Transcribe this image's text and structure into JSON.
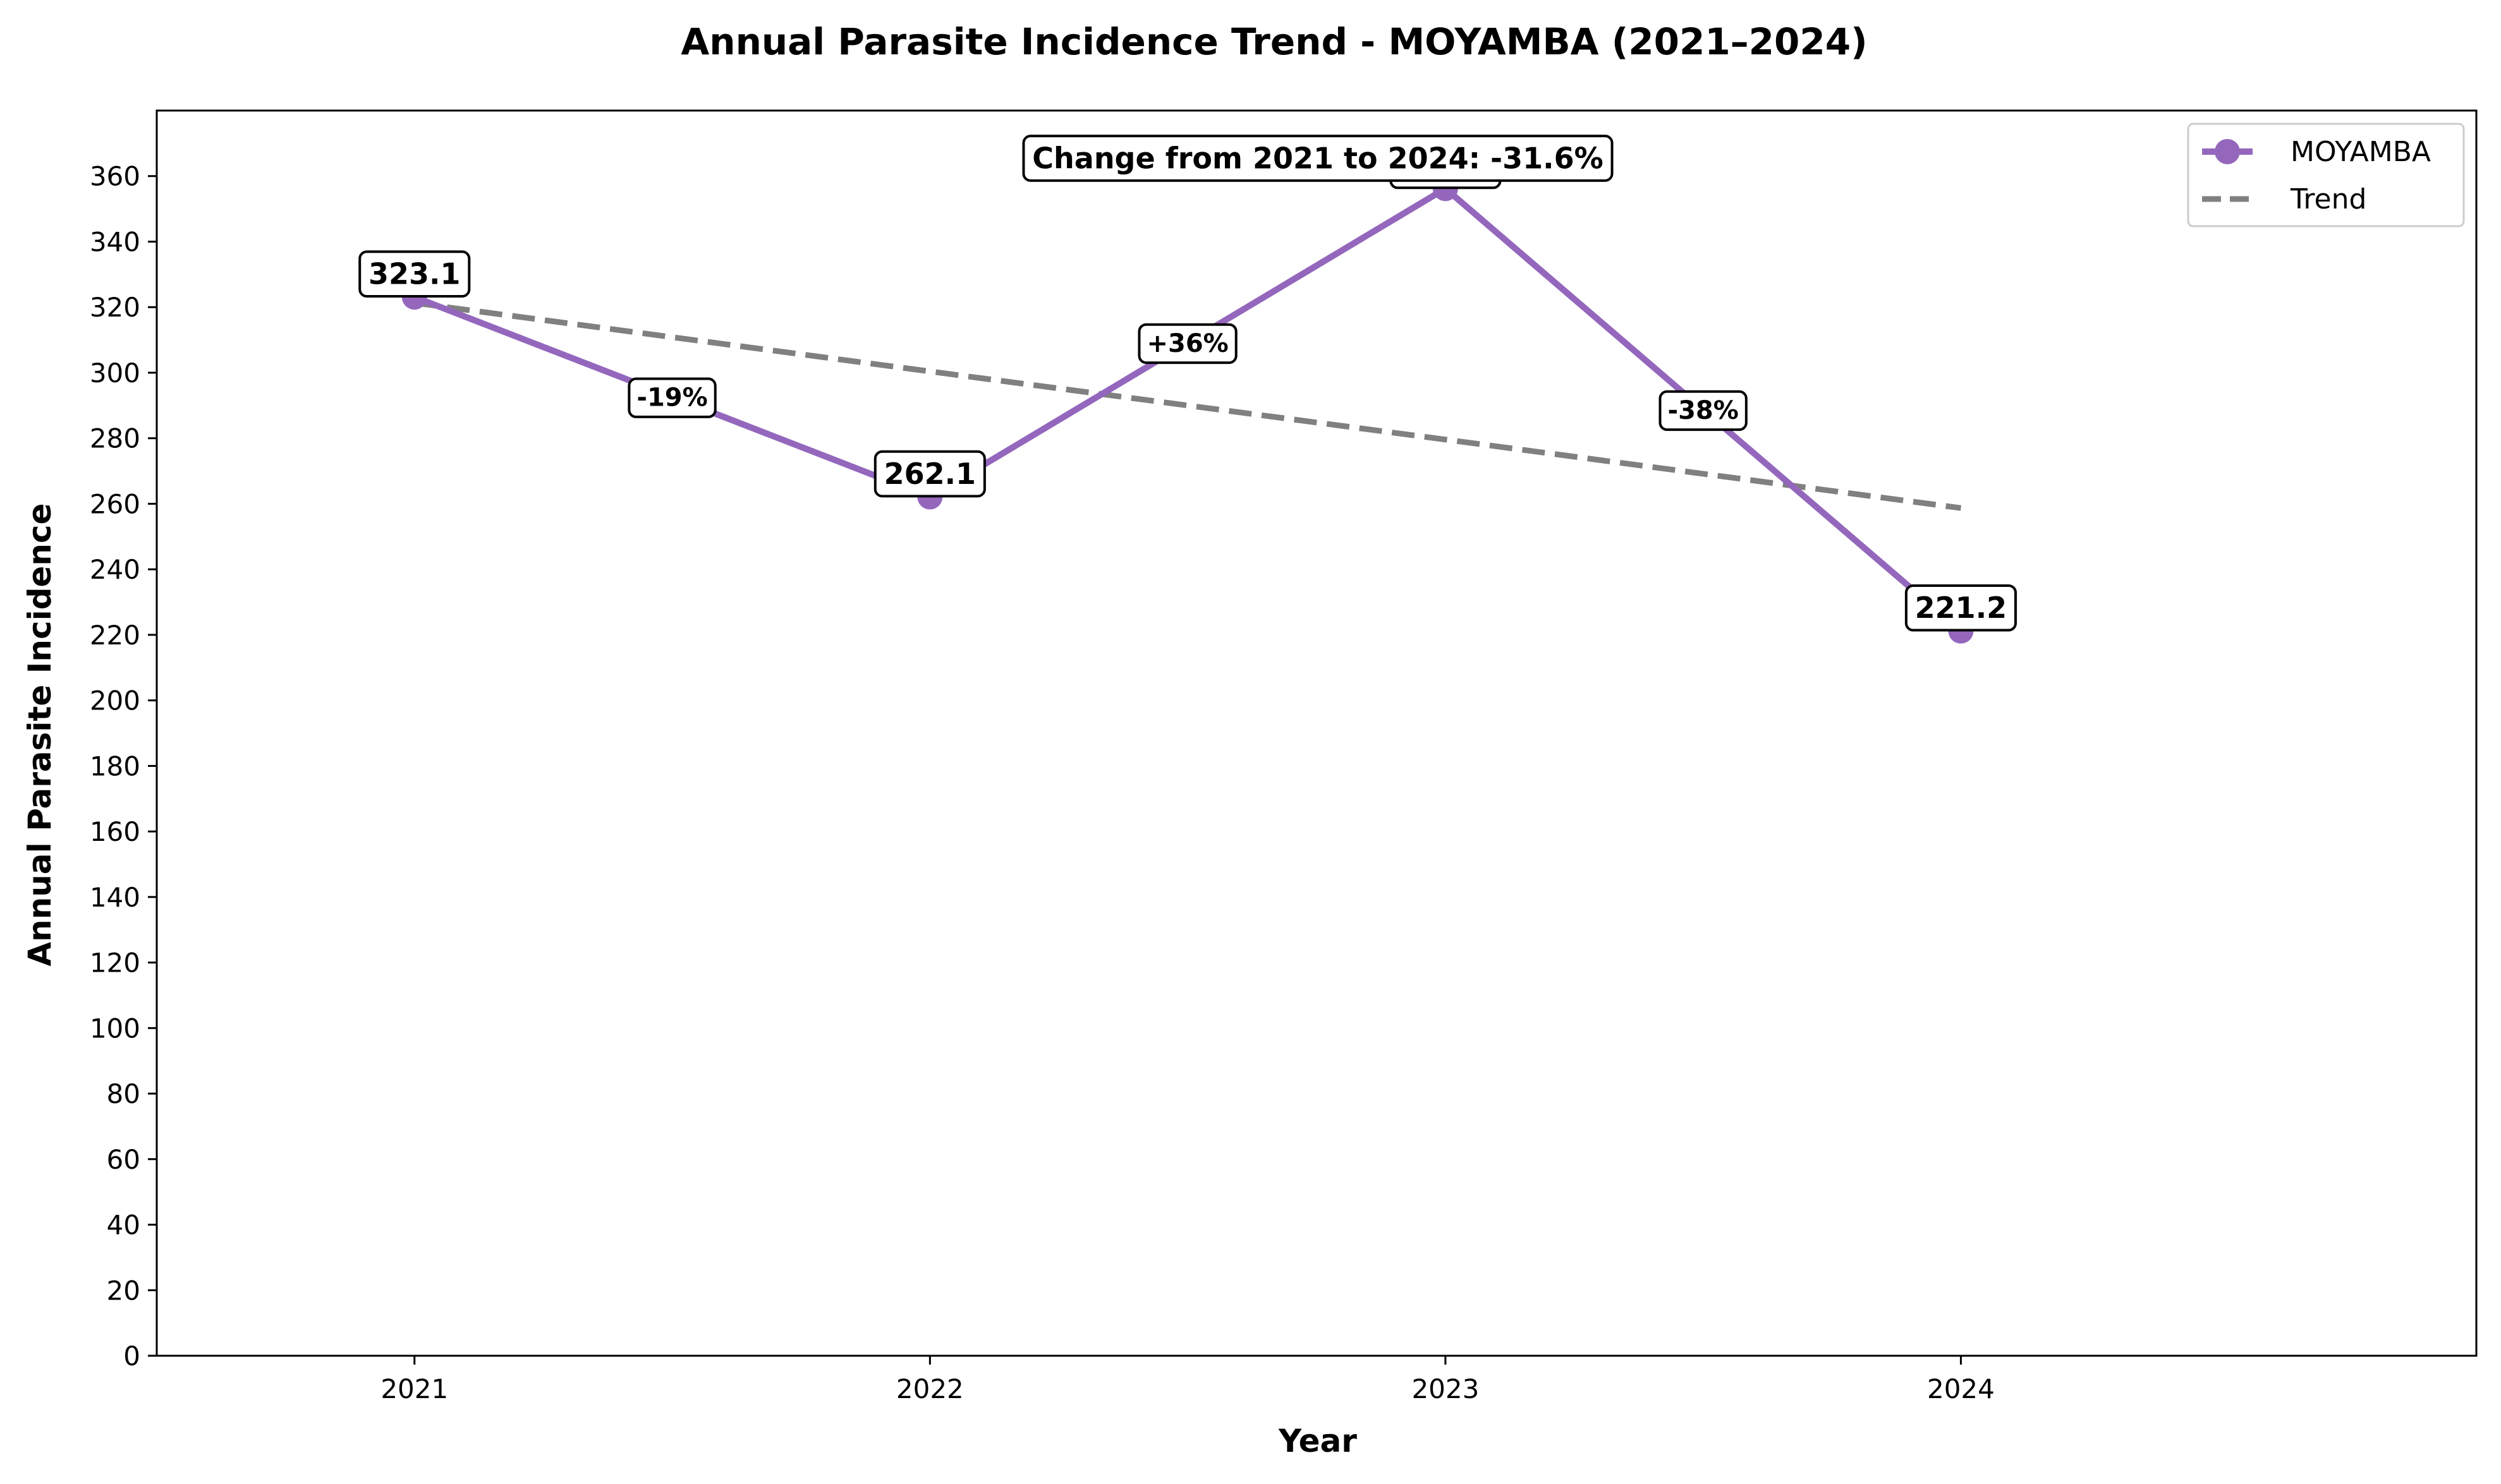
{
  "chart_data": {
    "type": "line",
    "title": "Annual Parasite Incidence Trend - MOYAMBA (2021–2024)",
    "xlabel": "Year",
    "ylabel": "Annual Parasite Incidence",
    "categories": [
      "2021",
      "2022",
      "2023",
      "2024"
    ],
    "ylim": [
      0,
      380
    ],
    "yticks": [
      0,
      20,
      40,
      60,
      80,
      100,
      120,
      140,
      160,
      180,
      200,
      220,
      240,
      260,
      280,
      300,
      320,
      340,
      360
    ],
    "grid": false,
    "legend_position": "top-right",
    "series": [
      {
        "name": "MOYAMBA",
        "values": [
          323.1,
          262.1,
          356.2,
          221.2
        ],
        "value_labels": [
          "323.1",
          "262.1",
          "356.2",
          "221.2"
        ],
        "color": "#9467bd",
        "style": "solid",
        "marker": "circle"
      },
      {
        "name": "Trend",
        "values": [
          321.3,
          300.4,
          279.6,
          258.7
        ],
        "color": "#808080",
        "style": "dashed"
      }
    ],
    "segment_labels": [
      {
        "from": 0,
        "to": 1,
        "text": "-19%"
      },
      {
        "from": 1,
        "to": 2,
        "text": "+36%"
      },
      {
        "from": 2,
        "to": 3,
        "text": "-38%"
      }
    ],
    "annotation": "Change from 2021 to 2024: -31.6%"
  }
}
